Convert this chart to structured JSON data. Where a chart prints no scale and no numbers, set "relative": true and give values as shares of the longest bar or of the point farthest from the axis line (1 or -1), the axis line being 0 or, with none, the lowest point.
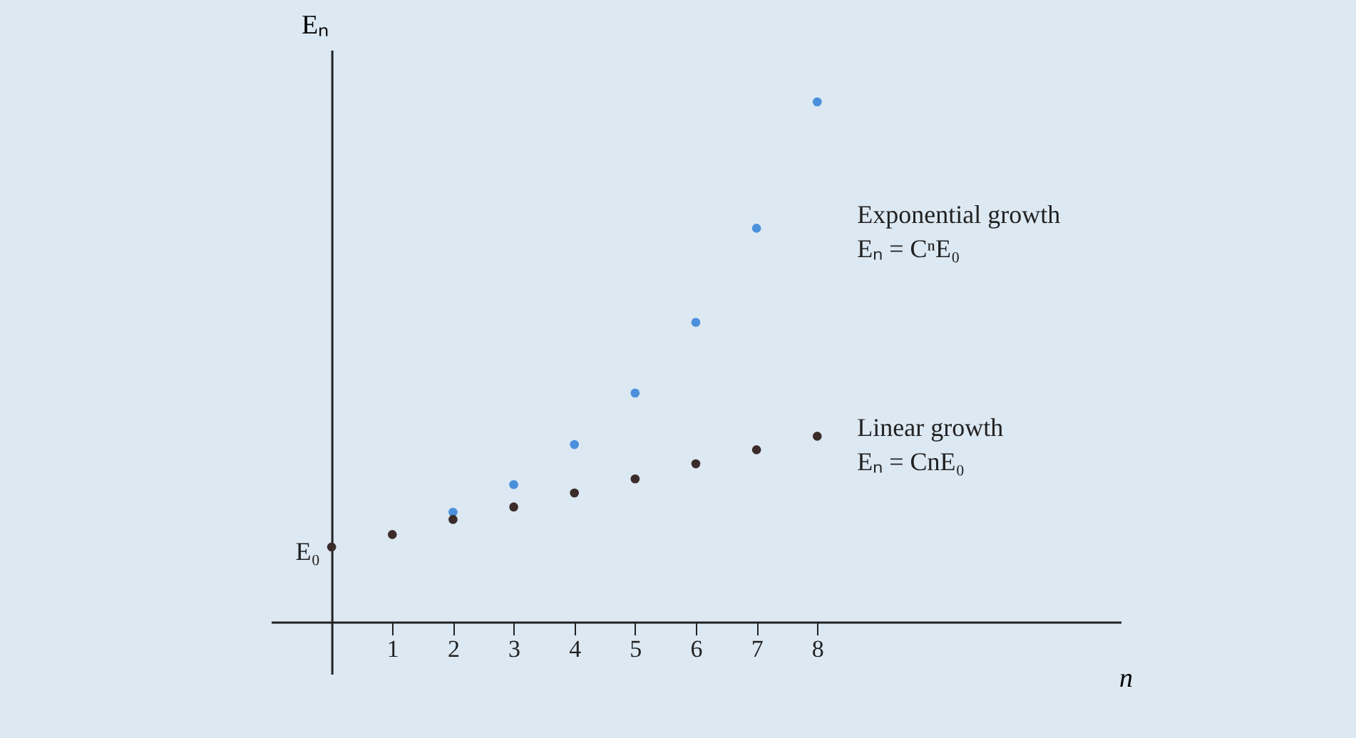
{
  "chart_data": {
    "type": "scatter",
    "relative": true,
    "xlabel": "n",
    "ylabel": "Eₙ",
    "x": [
      0,
      1,
      2,
      3,
      4,
      5,
      6,
      7,
      8
    ],
    "series": [
      {
        "name": "Exponential growth",
        "color": "#4a90dc",
        "values": [
          null,
          null,
          0.211,
          0.264,
          0.341,
          0.44,
          0.576,
          0.757,
          1
        ]
      },
      {
        "name": "Linear growth",
        "color": "#3b2c2a",
        "values": [
          0.144,
          0.168,
          0.197,
          0.221,
          0.248,
          0.275,
          0.304,
          0.331,
          0.357
        ]
      }
    ],
    "annotations": [
      {
        "text": "E₀",
        "x": 0,
        "y": 0.144
      },
      "Eₙ = CⁿE₀",
      "Eₙ = CnE₀"
    ],
    "xlim": [
      -1,
      13
    ],
    "xticks": [
      1,
      2,
      3,
      4,
      5,
      6,
      7,
      8
    ],
    "grid": false,
    "marker": "circle"
  }
}
